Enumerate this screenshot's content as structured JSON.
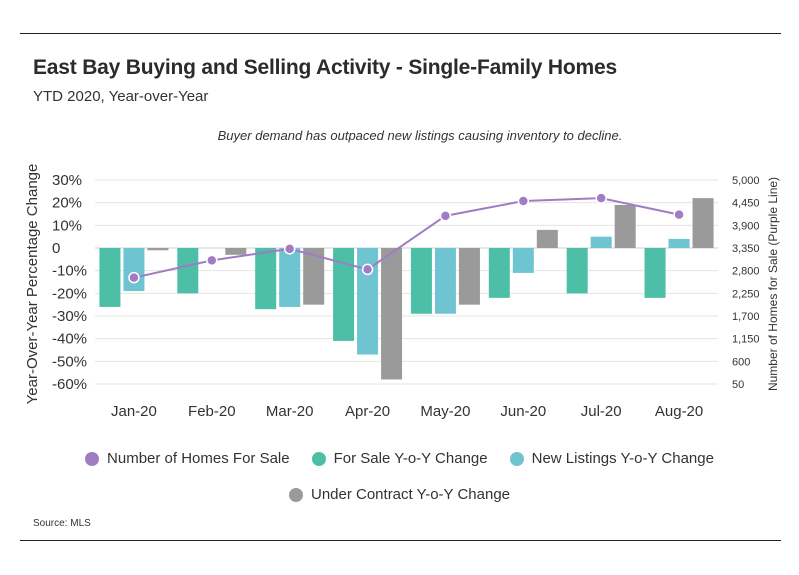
{
  "title": "East Bay Buying and Selling Activity - Single-Family Homes",
  "subtitle": "YTD 2020, Year-over-Year",
  "annotation": "Buyer demand has outpaced new listings causing inventory to decline.",
  "source": "Source:  MLS",
  "colors": {
    "line": "#a07cc5",
    "for_sale": "#4dbfa6",
    "new_listings": "#6ec4d0",
    "under_contract": "#9a9a9a"
  },
  "chart_data": {
    "type": "bar",
    "categories": [
      "Jan-20",
      "Feb-20",
      "Mar-20",
      "Apr-20",
      "May-20",
      "Jun-20",
      "Jul-20",
      "Aug-20"
    ],
    "ylabel": "Year-Over-Year Percentage Change",
    "y2label": "Number of Homes for Sale (Purple Line)",
    "ylim": [
      -60,
      30
    ],
    "y_ticks": [
      "30%",
      "20%",
      "10%",
      "0",
      "-10%",
      "-20%",
      "-30%",
      "-40%",
      "-50%",
      "-60%"
    ],
    "y2lim": [
      50,
      5000
    ],
    "y2_ticks": [
      "5,000",
      "4,450",
      "3,900",
      "3,350",
      "2,800",
      "2,250",
      "1,700",
      "1,150",
      "600",
      "50"
    ],
    "series": [
      {
        "name": "For Sale Y-o-Y Change",
        "kind": "bar",
        "values": [
          -26,
          -20,
          -27,
          -41,
          -29,
          -22,
          -20,
          -22
        ]
      },
      {
        "name": "New Listings Y-o-Y Change",
        "kind": "bar",
        "values": [
          -19,
          0,
          -26,
          -47,
          -29,
          -11,
          5,
          4
        ]
      },
      {
        "name": "Under Contract Y-o-Y Change",
        "kind": "bar",
        "values": [
          -1,
          -3,
          -25,
          -58,
          -25,
          8,
          19,
          22
        ]
      },
      {
        "name": "Number of Homes For Sale",
        "kind": "line",
        "axis": "y2",
        "values": [
          2630,
          3050,
          3330,
          2830,
          4130,
          4490,
          4560,
          4160
        ]
      }
    ],
    "legend": [
      {
        "label": "Number of Homes For Sale",
        "color": "#a07cc5"
      },
      {
        "label": "For Sale Y-o-Y Change",
        "color": "#4dbfa6"
      },
      {
        "label": "New Listings Y-o-Y Change",
        "color": "#6ec4d0"
      },
      {
        "label": "Under Contract Y-o-Y Change",
        "color": "#9a9a9a"
      }
    ]
  }
}
